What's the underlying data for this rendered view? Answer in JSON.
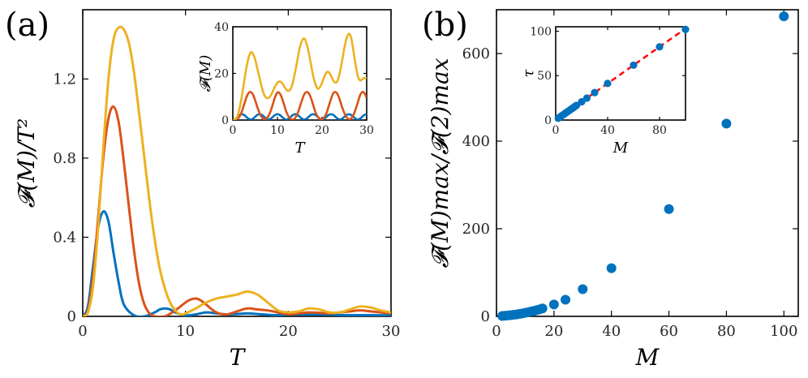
{
  "panel_labels": {
    "a": "(a)",
    "b": "(b)"
  },
  "chart_data": [
    {
      "id": "a-main",
      "type": "line",
      "panel": "(a)",
      "xlabel": "T",
      "ylabel": "𝓕(M)/T²",
      "xlim": [
        0,
        30
      ],
      "ylim": [
        0,
        1.55
      ],
      "xticks": [
        0,
        10,
        20,
        30
      ],
      "yticks": [
        0,
        0.4,
        0.8,
        1.2
      ],
      "ytick_labels": [
        "0",
        "0.4",
        "0.8",
        "1.2"
      ],
      "colors": [
        "#0072BD",
        "#D95319",
        "#EDB120"
      ],
      "series": [
        {
          "name": "blue",
          "color": "#0072BD",
          "x": [
            0,
            0.5,
            1,
            1.5,
            2,
            2.5,
            3,
            3.5,
            4,
            5,
            6,
            7,
            7.5,
            8,
            8.5,
            9,
            10,
            11,
            12,
            13,
            14,
            15,
            16,
            17,
            18,
            19,
            20,
            22,
            24,
            26,
            28,
            30
          ],
          "y": [
            0,
            0.05,
            0.25,
            0.45,
            0.53,
            0.48,
            0.32,
            0.17,
            0.06,
            0.005,
            0,
            0.02,
            0.035,
            0.04,
            0.035,
            0.02,
            0.005,
            0.01,
            0.02,
            0.015,
            0.01,
            0.012,
            0.015,
            0.012,
            0.008,
            0.006,
            0.008,
            0.01,
            0.008,
            0.006,
            0.006,
            0.005
          ]
        },
        {
          "name": "red",
          "color": "#D95319",
          "x": [
            0,
            0.5,
            1,
            1.5,
            2,
            2.5,
            3,
            3.5,
            4,
            4.5,
            5,
            5.5,
            6,
            6.5,
            7,
            8,
            9,
            10,
            10.5,
            11,
            11.5,
            12,
            13,
            14,
            15,
            16,
            17,
            18,
            19,
            20,
            21,
            22,
            23,
            24,
            25,
            26,
            27,
            28,
            29,
            30
          ],
          "y": [
            0,
            0.03,
            0.2,
            0.5,
            0.8,
            1.0,
            1.06,
            0.98,
            0.78,
            0.55,
            0.33,
            0.16,
            0.06,
            0.015,
            0,
            0,
            0.03,
            0.07,
            0.085,
            0.09,
            0.08,
            0.06,
            0.02,
            0.01,
            0.025,
            0.04,
            0.035,
            0.03,
            0.02,
            0.01,
            0.015,
            0.02,
            0.018,
            0.015,
            0.02,
            0.025,
            0.03,
            0.025,
            0.02,
            0.015
          ]
        },
        {
          "name": "yellow",
          "color": "#EDB120",
          "x": [
            0,
            0.5,
            1,
            1.5,
            2,
            2.5,
            3,
            3.5,
            4,
            4.5,
            5,
            5.5,
            6,
            6.5,
            7,
            7.5,
            8,
            8.5,
            9,
            9.5,
            10,
            11,
            12,
            13,
            14,
            15,
            16,
            17,
            18,
            19,
            20,
            21,
            22,
            23,
            24,
            25,
            26,
            27,
            28,
            29,
            30
          ],
          "y": [
            0,
            0.02,
            0.15,
            0.45,
            0.85,
            1.2,
            1.4,
            1.46,
            1.45,
            1.38,
            1.23,
            1.02,
            0.8,
            0.58,
            0.39,
            0.24,
            0.14,
            0.07,
            0.03,
            0.01,
            0.015,
            0.04,
            0.07,
            0.09,
            0.1,
            0.11,
            0.125,
            0.11,
            0.07,
            0.03,
            0.02,
            0.025,
            0.04,
            0.035,
            0.02,
            0.02,
            0.035,
            0.05,
            0.045,
            0.03,
            0.02
          ]
        }
      ]
    },
    {
      "id": "a-inset",
      "type": "line",
      "xlabel": "T",
      "ylabel": "𝓕(M)",
      "xlim": [
        0,
        30
      ],
      "ylim": [
        0,
        40
      ],
      "xticks": [
        0,
        10,
        20,
        30
      ],
      "yticks": [
        0,
        20,
        40
      ],
      "series": [
        {
          "name": "blue",
          "color": "#0072BD",
          "x": [
            0,
            0.5,
            1,
            1.5,
            2,
            2.5,
            3,
            3.5,
            4,
            4.5,
            5,
            5.5,
            6,
            6.5,
            7,
            7.5,
            8,
            8.5,
            9,
            9.5,
            10,
            10.5,
            11,
            11.5,
            12,
            12.5,
            13,
            13.5,
            14,
            14.5,
            15,
            15.5,
            16,
            16.5,
            17,
            17.5,
            18,
            18.5,
            19,
            19.5,
            20,
            20.5,
            21,
            21.5,
            22,
            22.5,
            23,
            23.5,
            24,
            24.5,
            25,
            25.5,
            26,
            26.5,
            27,
            27.5,
            28,
            28.5,
            29,
            29.5,
            30
          ],
          "y": [
            0,
            0.3,
            1.2,
            2.1,
            2.5,
            2.2,
            1.4,
            0.6,
            0.2,
            0.6,
            1.4,
            2.2,
            2.5,
            2.2,
            1.4,
            0.6,
            0.2,
            0.6,
            1.4,
            2.2,
            2.5,
            2.2,
            1.4,
            0.6,
            0.2,
            0.6,
            1.4,
            2.2,
            2.5,
            2.2,
            1.4,
            0.6,
            0.2,
            0.6,
            1.4,
            2.2,
            2.5,
            2.2,
            1.4,
            0.6,
            0.2,
            0.6,
            1.4,
            2.2,
            2.5,
            2.2,
            1.4,
            0.6,
            0.2,
            0.6,
            1.4,
            2.2,
            2.5,
            2.2,
            1.4,
            0.6,
            0.2,
            0.6,
            1.4,
            2.2,
            2.5
          ]
        },
        {
          "name": "red",
          "color": "#D95319",
          "x": [
            0,
            0.5,
            1,
            1.5,
            2,
            2.5,
            3,
            3.5,
            4,
            4.5,
            5,
            5.5,
            6,
            6.5,
            7,
            7.5,
            8,
            8.5,
            9,
            9.5,
            10,
            10.5,
            11,
            11.5,
            12,
            12.5,
            13,
            13.5,
            14,
            14.5,
            15,
            15.5,
            16,
            16.5,
            17,
            17.5,
            18,
            18.5,
            19,
            19.5,
            20,
            20.5,
            21,
            21.5,
            22,
            22.5,
            23,
            23.5,
            24,
            24.5,
            25,
            25.5,
            26,
            26.5,
            27,
            27.5,
            28,
            28.5,
            29,
            29.5,
            30
          ],
          "y": [
            0,
            0.1,
            0.5,
            1.5,
            3.5,
            6.5,
            9.5,
            11.5,
            12,
            11,
            8.5,
            5.5,
            3,
            1.2,
            0.3,
            0.6,
            1.8,
            4,
            7,
            10,
            11.8,
            11.5,
            9.5,
            6.5,
            3.5,
            1.5,
            0.4,
            0.2,
            1,
            2.8,
            5.5,
            8.5,
            11,
            12,
            11.5,
            9.5,
            6.5,
            3.5,
            1.5,
            0.4,
            0.3,
            1.2,
            3,
            6,
            9,
            11.5,
            12,
            11,
            8.5,
            5.5,
            3,
            1.2,
            0.3,
            0.6,
            2,
            4.5,
            7.5,
            10.5,
            12,
            11.5,
            9.5
          ]
        },
        {
          "name": "yellow",
          "color": "#EDB120",
          "x": [
            0,
            0.5,
            1,
            1.5,
            2,
            2.5,
            3,
            3.5,
            4,
            4.5,
            5,
            5.5,
            6,
            6.5,
            7,
            7.5,
            8,
            8.5,
            9,
            9.5,
            10,
            10.5,
            11,
            11.5,
            12,
            12.5,
            13,
            13.5,
            14,
            14.5,
            15,
            15.5,
            16,
            16.5,
            17,
            17.5,
            18,
            18.5,
            19,
            19.5,
            20,
            20.5,
            21,
            21.5,
            22,
            22.5,
            23,
            23.5,
            24,
            24.5,
            25,
            25.5,
            26,
            26.5,
            27,
            27.5,
            28,
            28.5,
            29,
            29.5,
            30
          ],
          "y": [
            0,
            0.2,
            1.5,
            5,
            10,
            16,
            22,
            26.5,
            29,
            28.5,
            26,
            22,
            18,
            14,
            11,
            9.5,
            9.5,
            10.5,
            12.5,
            14.5,
            16,
            16.5,
            16,
            14.5,
            13,
            12.5,
            13.5,
            16.5,
            21,
            26,
            31,
            34,
            35,
            33,
            29,
            24,
            19,
            15.5,
            13.5,
            14,
            16,
            18.5,
            20.5,
            20.5,
            19,
            17,
            16,
            17,
            20.5,
            25.5,
            31,
            35,
            37,
            35.5,
            30,
            24,
            19,
            17,
            17.5,
            18,
            18
          ]
        }
      ]
    },
    {
      "id": "b-main",
      "type": "scatter",
      "panel": "(b)",
      "xlabel": "M",
      "ylabel": "𝓕(M)max/𝓕(2)max",
      "xlim": [
        0,
        105
      ],
      "ylim": [
        0,
        700
      ],
      "xticks": [
        0,
        20,
        40,
        60,
        80,
        100
      ],
      "yticks": [
        0,
        200,
        400,
        600
      ],
      "color": "#0072BD",
      "x": [
        2,
        3,
        4,
        5,
        6,
        7,
        8,
        9,
        10,
        11,
        12,
        13,
        14,
        15,
        16,
        20,
        24,
        30,
        40,
        60,
        80,
        100
      ],
      "y": [
        1,
        1.5,
        2,
        2.8,
        3.6,
        4.5,
        5.6,
        6.7,
        8,
        9.5,
        11,
        12.6,
        14.2,
        16,
        18,
        27,
        38,
        62,
        110,
        245,
        440,
        685
      ]
    },
    {
      "id": "b-inset",
      "type": "scatter",
      "xlabel": "M",
      "ylabel": "τ",
      "xlim": [
        0,
        100
      ],
      "ylim": [
        0,
        105
      ],
      "xticks": [
        0,
        40,
        80
      ],
      "yticks": [
        0,
        50,
        100
      ],
      "color": "#0072BD",
      "fit_color": "#FF0000",
      "fit_x": [
        0,
        100
      ],
      "fit_y": [
        0,
        103
      ],
      "x": [
        2,
        3,
        4,
        5,
        6,
        7,
        8,
        9,
        10,
        11,
        12,
        13,
        14,
        15,
        16,
        20,
        24,
        30,
        40,
        60,
        80,
        100
      ],
      "y": [
        2,
        3,
        4.2,
        5.2,
        6.2,
        7.2,
        8.3,
        9.3,
        10.3,
        11.3,
        12.4,
        13.4,
        14.4,
        15.5,
        16.5,
        20.6,
        24.7,
        30.9,
        41.2,
        61.8,
        82.4,
        102
      ]
    }
  ]
}
